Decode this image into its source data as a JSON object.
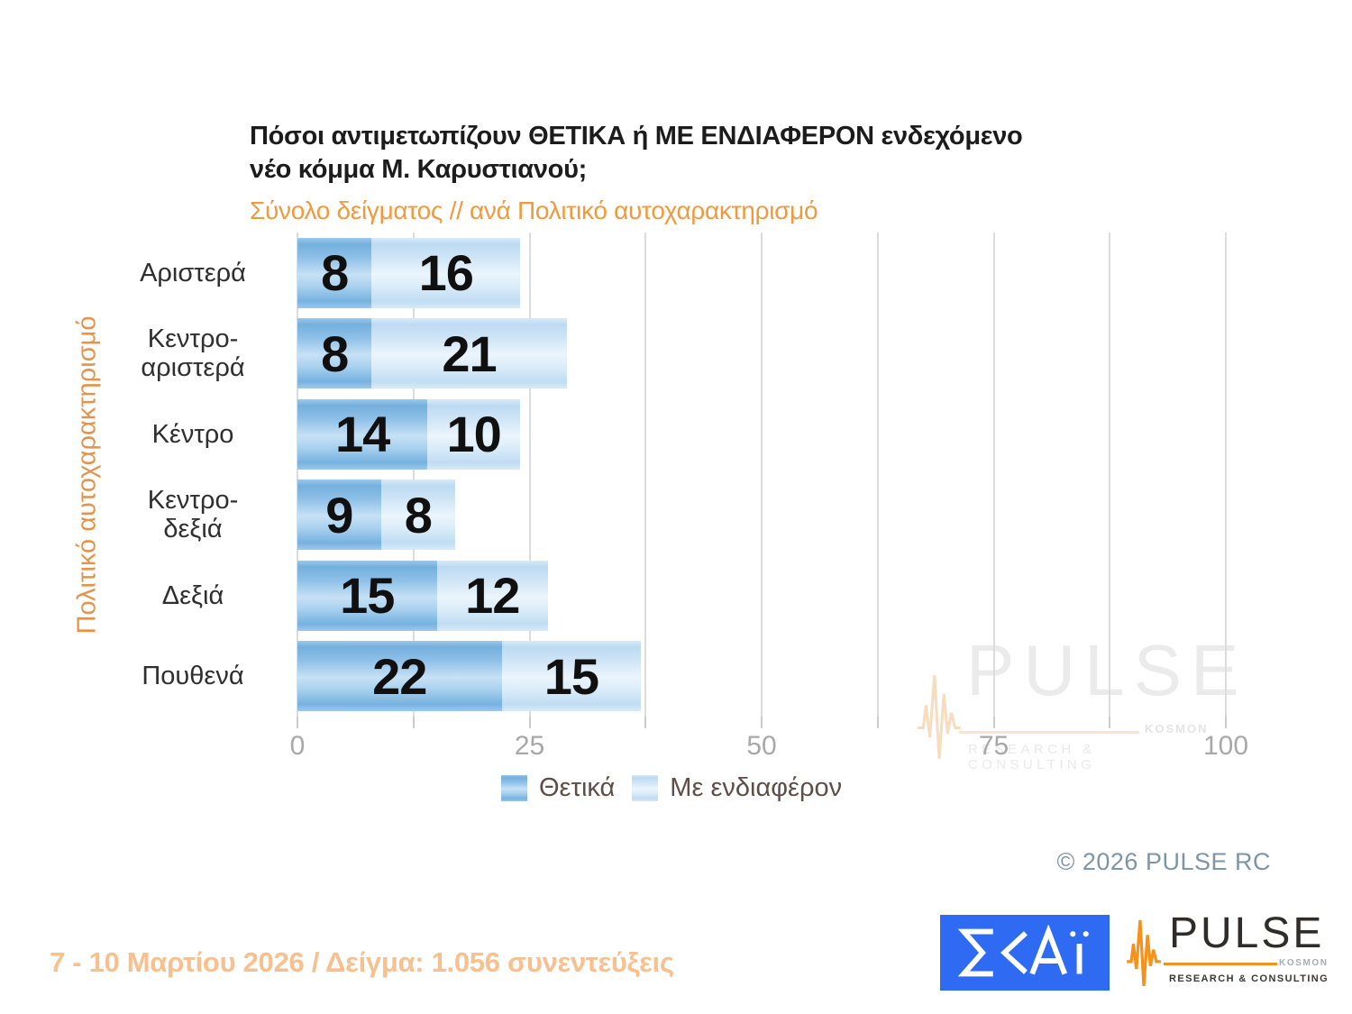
{
  "title": {
    "line1": "Πόσοι αντιμετωπίζουν ΘΕΤΙΚΑ ή ΜΕ ΕΝΔΙΑΦΕΡΟΝ ενδεχόμενο",
    "line2": "νέο κόμμα Μ. Καρυστιανού;"
  },
  "subtitle": "Σύνολο δείγματος // ανά Πολιτικό αυτοχαρακτηρισμό",
  "chart_data": {
    "type": "bar",
    "orientation": "horizontal",
    "stacked": true,
    "title": "Πόσοι αντιμετωπίζουν ΘΕΤΙΚΑ ή ΜΕ ΕΝΔΙΑΦΕΡΟΝ ενδεχόμενο νέο κόμμα Μ. Καρυστιανού;",
    "subtitle": "Σύνολο δείγματος // ανά Πολιτικό αυτοχαρακτηρισμό",
    "xlabel": "",
    "ylabel": "Πολιτικό αυτοχαρακτηρισμό",
    "xlim": [
      0,
      100
    ],
    "xticks": [
      0,
      25,
      50,
      75,
      100
    ],
    "gridline_step": 12.5,
    "grid": true,
    "legend_position": "bottom",
    "categories": [
      "Αριστερά",
      "Κεντρο-αριστερά",
      "Κέντρο",
      "Κεντρο-δεξιά",
      "Δεξιά",
      "Πουθενά"
    ],
    "category_display": [
      [
        "Αριστερά"
      ],
      [
        "Κεντρο-",
        "αριστερά"
      ],
      [
        "Κέντρο"
      ],
      [
        "Κεντρο-",
        "δεξιά"
      ],
      [
        "Δεξιά"
      ],
      [
        "Πουθενά"
      ]
    ],
    "series": [
      {
        "name": "Θετικά",
        "color": "#74b0de",
        "values": [
          8,
          8,
          14,
          9,
          15,
          22
        ]
      },
      {
        "name": "Με ενδιαφέρον",
        "color": "#c3ddf3",
        "values": [
          16,
          21,
          10,
          8,
          12,
          15
        ]
      }
    ]
  },
  "watermark": {
    "brand": "PULSE",
    "sub_brand": "KOSMON",
    "tagline": "RESEARCH & CONSULTING"
  },
  "copyright": "©  2026  PULSE RC",
  "footer": "7 - 10  Μαρτίου 2026  /  Δείγμα:  1.056 συνεντεύξεις",
  "logos": {
    "skai_alt": "ΣΚΑΪ",
    "pulse": {
      "brand": "PULSE",
      "sub_brand": "KOSMON",
      "tagline": "RESEARCH & CONSULTING"
    }
  }
}
